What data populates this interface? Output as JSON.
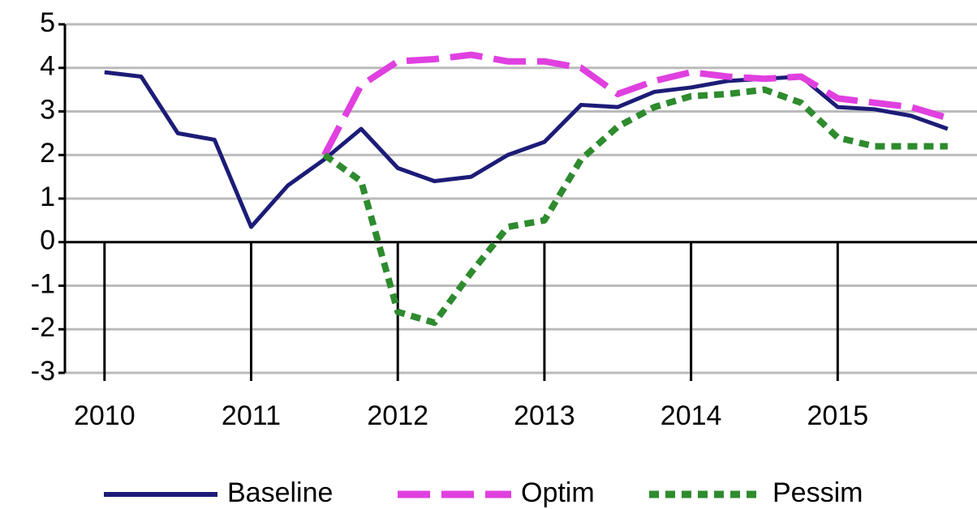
{
  "chart_data": {
    "type": "line",
    "x": [
      2010,
      2010.25,
      2010.5,
      2010.75,
      2011,
      2011.25,
      2011.5,
      2011.75,
      2012,
      2012.25,
      2012.5,
      2012.75,
      2013,
      2013.25,
      2013.5,
      2013.75,
      2014,
      2014.25,
      2014.5,
      2014.75,
      2015,
      2015.25,
      2015.5,
      2015.75
    ],
    "series": [
      {
        "name": "Baseline",
        "color": "#1c1c78",
        "dash": "solid",
        "values": [
          3.9,
          3.8,
          2.5,
          2.35,
          0.35,
          1.3,
          1.9,
          2.6,
          1.7,
          1.4,
          1.5,
          2.0,
          2.3,
          3.15,
          3.1,
          3.45,
          3.55,
          3.7,
          3.75,
          3.8,
          3.1,
          3.05,
          2.9,
          2.6
        ]
      },
      {
        "name": "Optim",
        "color": "#e040e0",
        "dash": "long",
        "values": [
          null,
          null,
          null,
          null,
          null,
          null,
          2.0,
          3.6,
          4.15,
          4.2,
          4.3,
          4.15,
          4.15,
          4.0,
          3.4,
          3.7,
          3.9,
          3.8,
          3.75,
          3.8,
          3.3,
          3.2,
          3.1,
          2.85
        ]
      },
      {
        "name": "Pessim",
        "color": "#2e8b2e",
        "dash": "short",
        "values": [
          null,
          null,
          null,
          null,
          null,
          null,
          2.0,
          1.4,
          -1.6,
          -1.85,
          -0.7,
          0.35,
          0.5,
          1.9,
          2.65,
          3.1,
          3.35,
          3.4,
          3.5,
          3.2,
          2.4,
          2.2,
          2.2,
          2.2
        ]
      }
    ],
    "xlim": [
      2009.73,
      2015.95
    ],
    "xticks": [
      2010,
      2011,
      2012,
      2013,
      2014,
      2015
    ],
    "ylim": [
      -3,
      5
    ],
    "yticks": [
      -3,
      -2,
      -1,
      0,
      1,
      2,
      3,
      4,
      5
    ],
    "grid": true,
    "legend": "bottom"
  }
}
